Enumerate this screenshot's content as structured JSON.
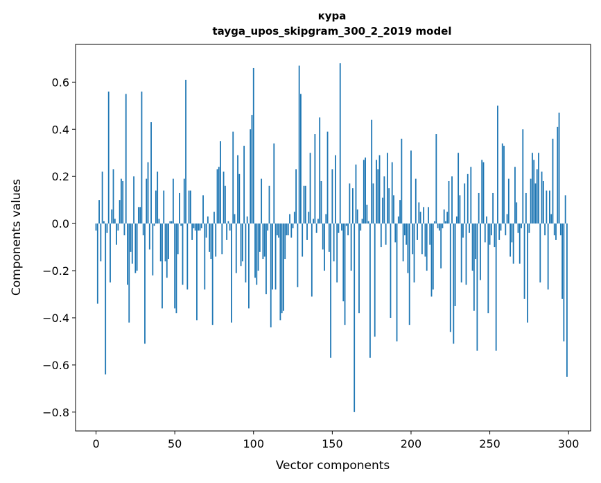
{
  "chart_data": {
    "type": "bar",
    "title": "кура",
    "subtitle": "tayga_upos_skipgram_300_2_2019 model",
    "xlabel": "Vector components",
    "ylabel": "Components values",
    "xlim": [
      -13,
      314
    ],
    "ylim": [
      -0.88,
      0.76
    ],
    "xticks": [
      0,
      50,
      100,
      150,
      200,
      250,
      300
    ],
    "yticks": [
      -0.8,
      -0.6,
      -0.4,
      -0.2,
      0.0,
      0.2,
      0.4,
      0.6
    ],
    "ytick_labels": [
      "−0.8",
      "−0.6",
      "−0.4",
      "−0.2",
      "0.0",
      "0.2",
      "0.4",
      "0.6"
    ],
    "bar_color": "#1f77b4",
    "x": [
      0,
      1,
      2,
      3,
      4,
      5,
      6,
      7,
      8,
      9,
      10,
      11,
      12,
      13,
      14,
      15,
      16,
      17,
      18,
      19,
      20,
      21,
      22,
      23,
      24,
      25,
      26,
      27,
      28,
      29,
      30,
      31,
      32,
      33,
      34,
      35,
      36,
      37,
      38,
      39,
      40,
      41,
      42,
      43,
      44,
      45,
      46,
      47,
      48,
      49,
      50,
      51,
      52,
      53,
      54,
      55,
      56,
      57,
      58,
      59,
      60,
      61,
      62,
      63,
      64,
      65,
      66,
      67,
      68,
      69,
      70,
      71,
      72,
      73,
      74,
      75,
      76,
      77,
      78,
      79,
      80,
      81,
      82,
      83,
      84,
      85,
      86,
      87,
      88,
      89,
      90,
      91,
      92,
      93,
      94,
      95,
      96,
      97,
      98,
      99,
      100,
      101,
      102,
      103,
      104,
      105,
      106,
      107,
      108,
      109,
      110,
      111,
      112,
      113,
      114,
      115,
      116,
      117,
      118,
      119,
      120,
      121,
      122,
      123,
      124,
      125,
      126,
      127,
      128,
      129,
      130,
      131,
      132,
      133,
      134,
      135,
      136,
      137,
      138,
      139,
      140,
      141,
      142,
      143,
      144,
      145,
      146,
      147,
      148,
      149,
      150,
      151,
      152,
      153,
      154,
      155,
      156,
      157,
      158,
      159,
      160,
      161,
      162,
      163,
      164,
      165,
      166,
      167,
      168,
      169,
      170,
      171,
      172,
      173,
      174,
      175,
      176,
      177,
      178,
      179,
      180,
      181,
      182,
      183,
      184,
      185,
      186,
      187,
      188,
      189,
      190,
      191,
      192,
      193,
      194,
      195,
      196,
      197,
      198,
      199,
      200,
      201,
      202,
      203,
      204,
      205,
      206,
      207,
      208,
      209,
      210,
      211,
      212,
      213,
      214,
      215,
      216,
      217,
      218,
      219,
      220,
      221,
      222,
      223,
      224,
      225,
      226,
      227,
      228,
      229,
      230,
      231,
      232,
      233,
      234,
      235,
      236,
      237,
      238,
      239,
      240,
      241,
      242,
      243,
      244,
      245,
      246,
      247,
      248,
      249,
      250,
      251,
      252,
      253,
      254,
      255,
      256,
      257,
      258,
      259,
      260,
      261,
      262,
      263,
      264,
      265,
      266,
      267,
      268,
      269,
      270,
      271,
      272,
      273,
      274,
      275,
      276,
      277,
      278,
      279,
      280,
      281,
      282,
      283,
      284,
      285,
      286,
      287,
      288,
      289,
      290,
      291,
      292,
      293,
      294,
      295,
      296,
      297,
      298,
      299
    ],
    "values": [
      -0.03,
      -0.34,
      0.1,
      -0.16,
      0.22,
      0.01,
      -0.64,
      -0.04,
      0.56,
      -0.25,
      0.06,
      0.23,
      0.02,
      -0.09,
      -0.03,
      0.1,
      0.19,
      0.18,
      -0.05,
      0.55,
      -0.26,
      -0.42,
      -0.12,
      -0.17,
      0.2,
      -0.21,
      -0.2,
      0.07,
      0.07,
      0.56,
      -0.05,
      -0.51,
      0.19,
      0.26,
      -0.11,
      0.43,
      -0.22,
      -0.01,
      0.14,
      0.22,
      0.02,
      -0.16,
      -0.36,
      0.14,
      -0.16,
      -0.23,
      -0.15,
      0.01,
      0.01,
      0.19,
      -0.36,
      -0.38,
      -0.13,
      0.13,
      -0.01,
      -0.26,
      0.19,
      0.61,
      -0.28,
      0.14,
      0.14,
      -0.07,
      -0.02,
      -0.03,
      -0.41,
      -0.03,
      -0.03,
      -0.02,
      0.12,
      -0.28,
      -0.06,
      0.03,
      -0.12,
      -0.15,
      -0.43,
      0.05,
      -0.14,
      0.23,
      0.24,
      0.35,
      -0.13,
      0.22,
      0.16,
      -0.07,
      0.01,
      -0.03,
      -0.42,
      0.39,
      0.04,
      -0.21,
      0.29,
      0.21,
      -0.18,
      -0.16,
      0.33,
      -0.25,
      0.03,
      -0.36,
      0.4,
      0.46,
      0.66,
      -0.23,
      -0.26,
      -0.2,
      -0.12,
      0.19,
      -0.15,
      -0.14,
      -0.3,
      -0.03,
      0.16,
      -0.44,
      -0.28,
      0.34,
      -0.28,
      -0.05,
      -0.06,
      -0.41,
      -0.38,
      -0.37,
      -0.15,
      -0.05,
      -0.05,
      0.04,
      -0.06,
      -0.02,
      0.05,
      0.23,
      -0.27,
      0.67,
      0.55,
      -0.14,
      0.16,
      0.16,
      -0.07,
      0.05,
      0.3,
      -0.31,
      0.02,
      0.38,
      -0.04,
      0.02,
      0.45,
      0.18,
      -0.11,
      -0.2,
      0.04,
      0.39,
      -0.12,
      -0.57,
      0.23,
      -0.16,
      0.29,
      -0.25,
      -0.04,
      0.68,
      -0.03,
      -0.33,
      -0.43,
      -0.01,
      -0.05,
      0.17,
      -0.2,
      0.15,
      -0.8,
      0.25,
      0.06,
      -0.38,
      -0.03,
      0.02,
      0.27,
      0.28,
      0.08,
      0.01,
      -0.57,
      0.44,
      0.17,
      -0.48,
      0.27,
      0.23,
      0.29,
      -0.1,
      0.11,
      0.2,
      -0.09,
      0.3,
      0.15,
      -0.4,
      0.26,
      0.12,
      -0.08,
      -0.5,
      0.03,
      0.1,
      0.36,
      -0.16,
      -0.05,
      -0.09,
      -0.21,
      -0.43,
      0.31,
      -0.13,
      -0.25,
      0.19,
      -0.07,
      0.09,
      0.05,
      -0.13,
      0.07,
      -0.14,
      -0.2,
      0.07,
      -0.09,
      -0.31,
      -0.28,
      0.01,
      0.38,
      -0.02,
      -0.03,
      -0.19,
      -0.02,
      0.06,
      0.01,
      0.05,
      0.18,
      -0.46,
      0.2,
      -0.51,
      -0.35,
      0.03,
      0.3,
      0.12,
      -0.25,
      -0.06,
      0.17,
      -0.26,
      0.21,
      -0.04,
      0.24,
      -0.2,
      -0.37,
      -0.15,
      -0.54,
      0.13,
      -0.24,
      0.27,
      0.26,
      -0.08,
      0.03,
      -0.38,
      -0.09,
      -0.05,
      0.13,
      -0.1,
      -0.54,
      0.5,
      -0.07,
      -0.03,
      0.34,
      0.33,
      -0.05,
      0.04,
      0.19,
      -0.14,
      -0.08,
      -0.17,
      0.24,
      0.09,
      -0.04,
      -0.17,
      -0.02,
      0.4,
      -0.32,
      0.13,
      -0.42,
      -0.04,
      0.19,
      0.3,
      0.27,
      0.17,
      0.23,
      0.3,
      -0.25,
      0.22,
      0.18,
      -0.05,
      0.14,
      -0.28,
      0.14,
      0.04,
      0.36,
      -0.05,
      -0.07,
      0.41,
      0.47,
      -0.05,
      -0.32,
      -0.5,
      0.12,
      -0.65
    ]
  }
}
